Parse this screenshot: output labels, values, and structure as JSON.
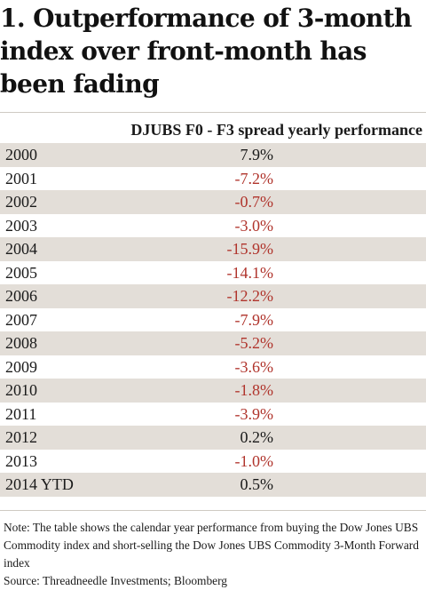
{
  "chart_data": {
    "type": "table",
    "title": "1. Outperformance of 3-month index over front-month has been fading",
    "column_header": "DJUBS F0 - F3 spread yearly performance",
    "rows": [
      {
        "year": "2000",
        "value": "7.9%",
        "number": 7.9
      },
      {
        "year": "2001",
        "value": "-7.2%",
        "number": -7.2
      },
      {
        "year": "2002",
        "value": "-0.7%",
        "number": -0.7
      },
      {
        "year": "2003",
        "value": "-3.0%",
        "number": -3.0
      },
      {
        "year": "2004",
        "value": "-15.9%",
        "number": -15.9
      },
      {
        "year": "2005",
        "value": "-14.1%",
        "number": -14.1
      },
      {
        "year": "2006",
        "value": "-12.2%",
        "number": -12.2
      },
      {
        "year": "2007",
        "value": "-7.9%",
        "number": -7.9
      },
      {
        "year": "2008",
        "value": "-5.2%",
        "number": -5.2
      },
      {
        "year": "2009",
        "value": "-3.6%",
        "number": -3.6
      },
      {
        "year": "2010",
        "value": "-1.8%",
        "number": -1.8
      },
      {
        "year": "2011",
        "value": "-3.9%",
        "number": -3.9
      },
      {
        "year": "2012",
        "value": "0.2%",
        "number": 0.2
      },
      {
        "year": "2013",
        "value": "-1.0%",
        "number": -1.0
      },
      {
        "year": "2014 YTD",
        "value": "0.5%",
        "number": 0.5
      }
    ],
    "note": "Note: The table shows the calendar year performance from buying the Dow Jones UBS Commodity index and short-selling the Dow Jones UBS Commodity 3-Month Forward index",
    "source": "Source: Threadneedle Investments; Bloomberg",
    "colors": {
      "positive": "#1a1a1a",
      "negative": "#b0342c",
      "shaded_row": "#e3ded8"
    }
  }
}
